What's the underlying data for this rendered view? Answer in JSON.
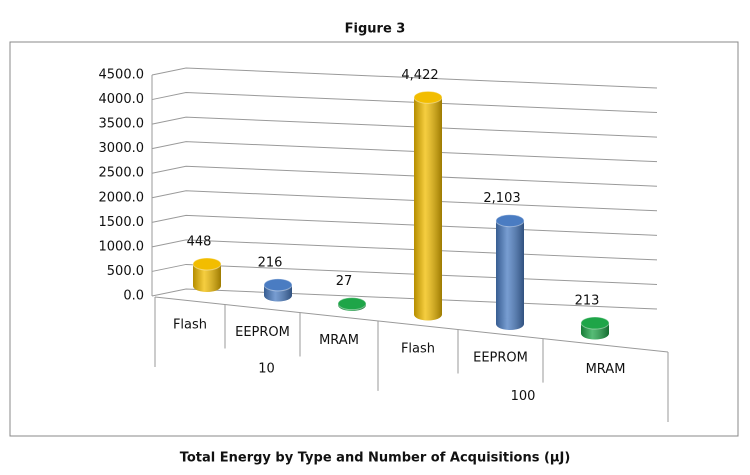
{
  "chart_data": {
    "type": "bar3d",
    "title": "Figure 3",
    "x_label": "Total Energy by Type and Number of Acquisitions (µJ)",
    "categories": [
      "Flash",
      "EEPROM",
      "MRAM",
      "Flash",
      "EEPROM",
      "MRAM"
    ],
    "groups": [
      {
        "label": "10",
        "size": 3
      },
      {
        "label": "100",
        "size": 3
      }
    ],
    "values": [
      448,
      216,
      27,
      4422,
      2103,
      213
    ],
    "value_labels": [
      "448",
      "216",
      "27",
      "4,422",
      "2,103",
      "213"
    ],
    "colors": [
      "#f2bd00",
      "#4a7cc2",
      "#1ea548",
      "#f2bd00",
      "#4a7cc2",
      "#1ea548"
    ],
    "ylim": [
      0,
      4500
    ],
    "yticks": [
      {
        "value": 0,
        "label": "0.0"
      },
      {
        "value": 500,
        "label": "500.0"
      },
      {
        "value": 1000,
        "label": "1000.0"
      },
      {
        "value": 1500,
        "label": "1500.0"
      },
      {
        "value": 2000,
        "label": "2000.0"
      },
      {
        "value": 2500,
        "label": "2500.0"
      },
      {
        "value": 3000,
        "label": "3000.0"
      },
      {
        "value": 3500,
        "label": "3500.0"
      },
      {
        "value": 4000,
        "label": "4000.0"
      },
      {
        "value": 4500,
        "label": "4500.0"
      }
    ],
    "grid": true
  }
}
